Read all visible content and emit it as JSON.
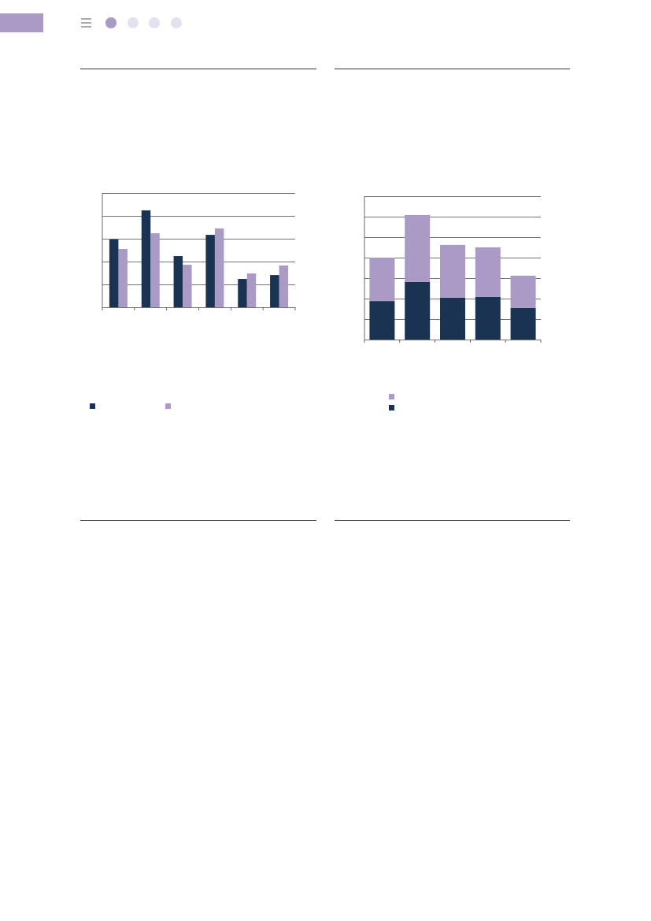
{
  "chart_data": [
    {
      "type": "bar",
      "categories": [
        null,
        null,
        null,
        null,
        null,
        null
      ],
      "series": [
        {
          "color": "#1a3352",
          "values": [
            2.97,
            4.24,
            2.24,
            3.17,
            1.24,
            1.41
          ]
        },
        {
          "color": "#a99bc6",
          "values": [
            2.55,
            3.24,
            1.86,
            3.45,
            1.48,
            1.83
          ]
        }
      ],
      "ylim": [
        0,
        5
      ],
      "yticks": [
        0,
        1,
        2,
        3,
        4,
        5
      ],
      "grid": true
    },
    {
      "type": "stacked_bar",
      "categories": [
        null,
        null,
        null,
        null,
        null
      ],
      "series": [
        {
          "color": "#1a3352",
          "values": [
            1.88,
            2.81,
            2.04,
            2.08,
            1.54
          ]
        },
        {
          "color": "#a99bc6",
          "values": [
            2.12,
            3.27,
            2.58,
            2.42,
            1.58
          ]
        }
      ],
      "ylim": [
        0,
        7
      ],
      "yticks": [
        0,
        1,
        2,
        3,
        4,
        5,
        6,
        7
      ],
      "grid": true
    }
  ]
}
